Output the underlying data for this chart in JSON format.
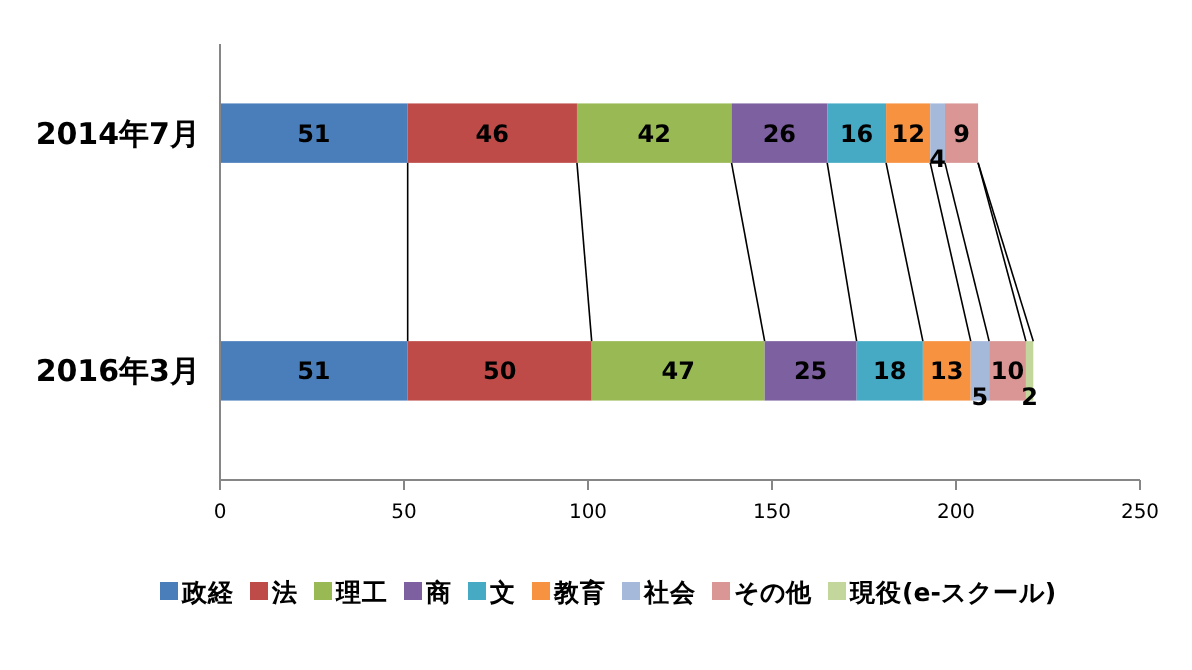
{
  "chart_data": {
    "type": "bar",
    "orientation": "horizontal",
    "stacked": true,
    "categories": [
      "2014年7月",
      "2016年3月"
    ],
    "series": [
      {
        "name": "政経",
        "color": "#4a7ebb",
        "values": [
          51,
          51
        ]
      },
      {
        "name": "法",
        "color": "#be4b48",
        "values": [
          46,
          50
        ]
      },
      {
        "name": "理工",
        "color": "#98b954",
        "values": [
          42,
          47
        ]
      },
      {
        "name": "商",
        "color": "#7d60a0",
        "values": [
          26,
          25
        ]
      },
      {
        "name": "文",
        "color": "#46aac5",
        "values": [
          16,
          18
        ]
      },
      {
        "name": "教育",
        "color": "#f69240",
        "values": [
          12,
          13
        ]
      },
      {
        "name": "社会",
        "color": "#a5b9db",
        "values": [
          4,
          5
        ]
      },
      {
        "name": "その他",
        "color": "#d99694",
        "values": [
          9,
          10
        ]
      },
      {
        "name": "現役(e-スクール)",
        "color": "#c3d69b",
        "values": [
          null,
          2
        ]
      }
    ],
    "xlim": [
      0,
      250
    ],
    "xticks": [
      0,
      50,
      100,
      150,
      200,
      250
    ],
    "data_labels": true,
    "legend": "bottom",
    "grid": false
  }
}
